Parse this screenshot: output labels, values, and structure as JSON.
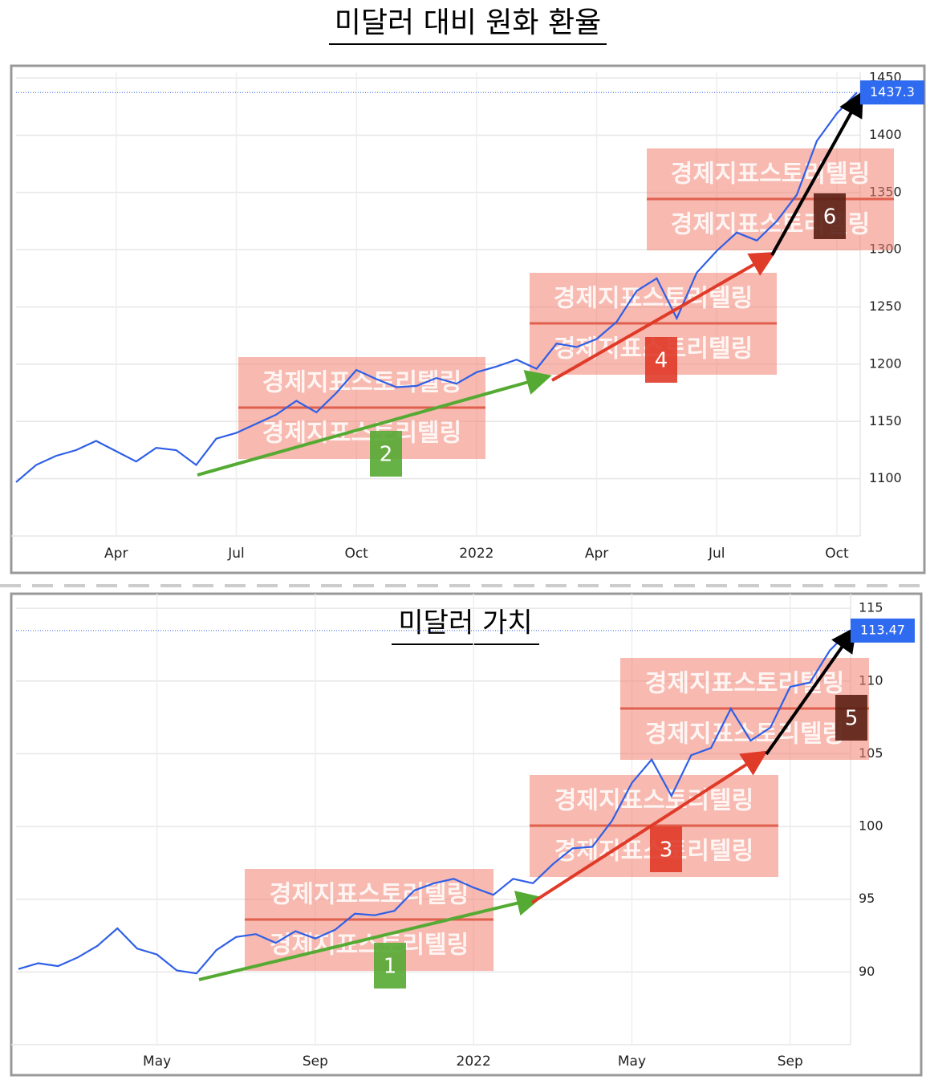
{
  "chart_data": [
    {
      "type": "line",
      "title": "미달러 대비 원화 환율",
      "categories": [
        null,
        null,
        null,
        null,
        null,
        "Apr",
        null,
        null,
        null,
        null,
        null,
        "Jul",
        null,
        null,
        null,
        null,
        null,
        "Oct",
        null,
        null,
        null,
        null,
        null,
        "2022",
        null,
        null,
        null,
        null,
        null,
        "Apr",
        null,
        null,
        null,
        null,
        null,
        "Jul",
        null,
        null,
        null,
        null,
        null,
        "Oct",
        null
      ],
      "values": [
        1097,
        1112,
        1120,
        1125,
        1133,
        1124,
        1115,
        1127,
        1125,
        1112,
        1135,
        1140,
        1148,
        1156,
        1168,
        1158,
        1175,
        1195,
        1187,
        1180,
        1181,
        1188,
        1183,
        1193,
        1198,
        1204,
        1196,
        1218,
        1215,
        1222,
        1237,
        1264,
        1275,
        1240,
        1280,
        1299,
        1315,
        1308,
        1325,
        1348,
        1395,
        1419,
        1437.3
      ],
      "color": "#2f5fe6",
      "last_value": 1437.3,
      "ylim": [
        1050,
        1455
      ],
      "yticks": [
        1100,
        1150,
        1200,
        1250,
        1300,
        1350,
        1400,
        1450
      ],
      "grid": true,
      "watermark": "경제지표스토리텔링",
      "markers": [
        "2",
        "4",
        "6"
      ]
    },
    {
      "type": "line",
      "title": "미달러 가치",
      "categories": [
        null,
        null,
        null,
        null,
        null,
        null,
        null,
        "May",
        null,
        null,
        null,
        null,
        null,
        null,
        null,
        "Sep",
        null,
        null,
        null,
        null,
        null,
        null,
        null,
        "2022",
        null,
        null,
        null,
        null,
        null,
        null,
        null,
        "May",
        null,
        null,
        null,
        null,
        null,
        null,
        null,
        "Sep",
        null,
        null,
        null
      ],
      "values": [
        90.2,
        90.6,
        90.4,
        91.0,
        91.8,
        93.0,
        91.6,
        91.2,
        90.1,
        89.9,
        91.5,
        92.4,
        92.6,
        92.0,
        92.8,
        92.3,
        92.9,
        94.0,
        93.9,
        94.2,
        95.6,
        96.1,
        96.4,
        95.8,
        95.3,
        96.4,
        96.1,
        97.4,
        98.5,
        98.6,
        100.4,
        103.0,
        104.6,
        102.1,
        104.9,
        105.4,
        108.1,
        105.9,
        106.8,
        109.6,
        109.9,
        112.1,
        113.47
      ],
      "color": "#2f5fe6",
      "last_value": 113.47,
      "ylim": [
        85,
        116
      ],
      "yticks": [
        90,
        95,
        100,
        105,
        110,
        115
      ],
      "grid": true,
      "watermark": "경제지표스토리텔링",
      "markers": [
        "1",
        "3",
        "5"
      ]
    }
  ]
}
